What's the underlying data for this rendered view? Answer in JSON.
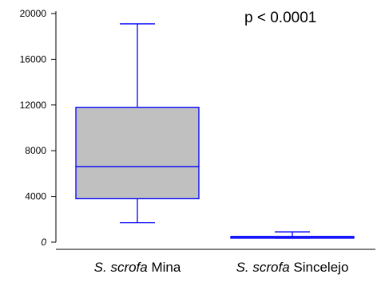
{
  "chart_data": {
    "type": "box",
    "annotation": "p < 0.0001",
    "ylim": [
      0,
      20000
    ],
    "yticks": [
      "20000",
      "16000",
      "12000",
      "8000",
      "4000",
      "0"
    ],
    "ytick_values": [
      20000,
      16000,
      12000,
      8000,
      4000,
      0
    ],
    "categories": [
      {
        "species": "S. scrofa",
        "site": "Mina"
      },
      {
        "species": "S. scrofa",
        "site": "Sincelejo"
      }
    ],
    "boxes": [
      {
        "min": 1700,
        "q1": 3800,
        "median": 6600,
        "q3": 11800,
        "max": 19100
      },
      {
        "min": 350,
        "q1": 350,
        "median": 450,
        "q3": 500,
        "max": 900
      }
    ],
    "colors": {
      "box_fill": "#c0c0c0",
      "box_stroke": "#0000ff",
      "axis": "#000000"
    }
  }
}
